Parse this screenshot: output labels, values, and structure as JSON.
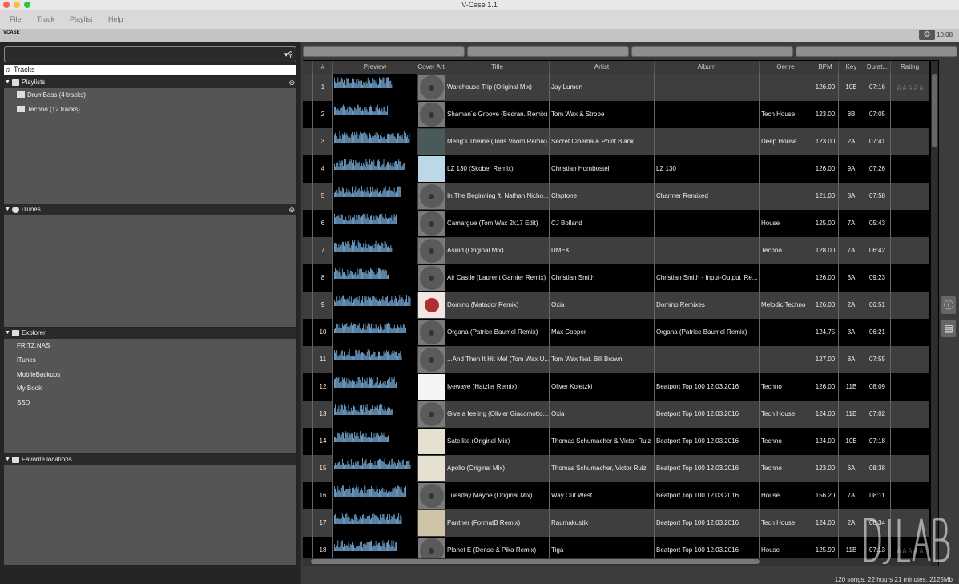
{
  "window": {
    "title": "V-Case 1.1"
  },
  "menu": [
    "File",
    "Track",
    "Playlist",
    "Help"
  ],
  "toolbar": {
    "logo": "VCASE",
    "gear_icon": "gear-icon",
    "clock": "10:08"
  },
  "sidebar": {
    "search": {
      "value": "",
      "placeholder": ""
    },
    "tracks_label": "Tracks",
    "playlists": {
      "title": "Playlists",
      "items": [
        "DrumBass (4 tracks)",
        "Techno (12 tracks)"
      ]
    },
    "itunes": {
      "title": "iTunes"
    },
    "explorer": {
      "title": "Explorer",
      "items": [
        "FRITZ.NAS",
        "iTunes",
        "MobileBackups",
        "My Book",
        "SSD"
      ]
    },
    "favorites": {
      "title": "Favorite locations"
    }
  },
  "table": {
    "columns": [
      "#",
      "Preview",
      "Cover Art",
      "Title",
      "Artist",
      "Album",
      "Genre",
      "BPM",
      "Key",
      "Durat...",
      "Rating"
    ],
    "rows": [
      {
        "n": "1",
        "title": "Warehouse Trip (Original Mix)",
        "artist": "Jay Lumen",
        "album": "",
        "genre": "",
        "bpm": "126.00",
        "key": "10B",
        "dur": "07:16",
        "rating": 0,
        "stars": true,
        "cover": "vinyl"
      },
      {
        "n": "2",
        "title": "Shaman´s Groove (Bedran. Remix)",
        "artist": "Tom Wax & Strobe",
        "album": "",
        "genre": "Tech House",
        "bpm": "123.00",
        "key": "8B",
        "dur": "07:05",
        "cover": "vinyl"
      },
      {
        "n": "3",
        "title": "Meng's Theme (Joris Voorn Remix)",
        "artist": "Secret Cinema & Point Blank",
        "album": "",
        "genre": "Deep House",
        "bpm": "123.00",
        "key": "2A",
        "dur": "07:41",
        "cover": "photo"
      },
      {
        "n": "4",
        "title": "LZ 130 (Skober Remix)",
        "artist": "Christian Hornbostel",
        "album": "LZ 130",
        "genre": "",
        "bpm": "126.00",
        "key": "9A",
        "dur": "07:26",
        "cover": "blue"
      },
      {
        "n": "5",
        "title": "In The Beginning ft. Nathan Nicho...",
        "artist": "Claptone",
        "album": "Charmer Remixed",
        "genre": "",
        "bpm": "121.00",
        "key": "8A",
        "dur": "07:58",
        "cover": "vinyl"
      },
      {
        "n": "6",
        "title": "Camargue (Tom Wax 2k17 Edit)",
        "artist": "CJ Bolland",
        "album": "",
        "genre": "House",
        "bpm": "125.00",
        "key": "7A",
        "dur": "05:43",
        "cover": "vinyl"
      },
      {
        "n": "7",
        "title": "Asiiiid (Original Mix)",
        "artist": "UMEK",
        "album": "",
        "genre": "Techno",
        "bpm": "128.00",
        "key": "7A",
        "dur": "06:42",
        "cover": "vinyl"
      },
      {
        "n": "8",
        "title": "Air Castle (Laurent Garnier Remix)",
        "artist": "Christian Smith",
        "album": "Christian Smith - Input-Output 'Re...",
        "genre": "",
        "bpm": "126.00",
        "key": "3A",
        "dur": "09:23",
        "cover": "vinyl"
      },
      {
        "n": "9",
        "title": "Domino (Matador Remix)",
        "artist": "Oxia",
        "album": "Domino Remixes",
        "genre": "Melodic Techno",
        "bpm": "126.00",
        "key": "2A",
        "dur": "06:51",
        "cover": "red"
      },
      {
        "n": "10",
        "title": "Organa (Patrice Baumel Remix)",
        "artist": "Max Cooper",
        "album": "Organa (Patrice Baumel Remix)",
        "genre": "",
        "bpm": "124.75",
        "key": "3A",
        "dur": "06:21",
        "cover": "vinyl"
      },
      {
        "n": "11",
        "title": "...And Then It Hit Me! (Tom Wax U...",
        "artist": "Tom Wax feat. Bill Brown",
        "album": "",
        "genre": "",
        "bpm": "127.00",
        "key": "8A",
        "dur": "07:55",
        "cover": "vinyl"
      },
      {
        "n": "12",
        "title": "Iyewaye (Hatzler Remix)",
        "artist": "Oliver Koletzki",
        "album": "Beatport Top 100 12.03.2016",
        "genre": "Techno",
        "bpm": "126.00",
        "key": "11B",
        "dur": "08:09",
        "cover": "white"
      },
      {
        "n": "13",
        "title": "Give a feeling (Olivier Giacomotto...",
        "artist": "Oxia",
        "album": "Beatport Top 100 12.03.2016",
        "genre": "Tech House",
        "bpm": "124.00",
        "key": "11B",
        "dur": "07:02",
        "cover": "vinyl"
      },
      {
        "n": "14",
        "title": "Satellite (Original Mix)",
        "artist": "Thomas Schumacher & Victor Ruiz",
        "album": "Beatport Top 100 12.03.2016",
        "genre": "Techno",
        "bpm": "124.00",
        "key": "10B",
        "dur": "07:18",
        "cover": "apollo"
      },
      {
        "n": "15",
        "title": "Apollo (Original Mix)",
        "artist": "Thomas Schumacher, Victor Ruiz",
        "album": "Beatport Top 100 12.03.2016",
        "genre": "Techno",
        "bpm": "123.00",
        "key": "6A",
        "dur": "08:38",
        "cover": "apollo"
      },
      {
        "n": "16",
        "title": "Tuesday Maybe (Original Mix)",
        "artist": "Way Out West",
        "album": "Beatport Top 100 12.03.2016",
        "genre": "House",
        "bpm": "156.20",
        "key": "7A",
        "dur": "08:11",
        "cover": "vinyl"
      },
      {
        "n": "17",
        "title": "Panther (FormatB Remix)",
        "artist": "Raumakustik",
        "album": "Beatport Top 100 12.03.2016",
        "genre": "Tech House",
        "bpm": "124.00",
        "key": "2A",
        "dur": "08:34",
        "cover": "beige"
      },
      {
        "n": "18",
        "title": "Planet E (Dense & Pika Remix)",
        "artist": "Tiga",
        "album": "Beatport Top 100 12.03.2016",
        "genre": "House",
        "bpm": "125.99",
        "key": "11B",
        "dur": "07:13",
        "stars": true,
        "rating": 0,
        "cover": "vinyl"
      }
    ]
  },
  "status": "120 songs, 22 hours 21 minutes, 2125Mb",
  "watermark": "DJ LAB",
  "colors": {
    "waveform": "#7fb8e8",
    "row_odd": "#3e3e3e",
    "row_even": "#000000"
  }
}
